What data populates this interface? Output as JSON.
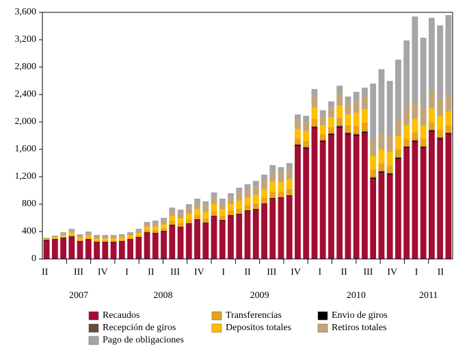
{
  "chart_data": {
    "type": "stacked-bar",
    "categories": [
      null,
      null,
      null,
      null,
      null,
      null,
      null,
      null,
      null,
      null,
      null,
      null,
      null,
      null,
      null,
      null,
      null,
      null,
      null,
      null,
      null,
      null,
      null,
      null,
      null,
      null,
      null,
      null,
      null,
      null,
      null,
      null,
      null,
      null,
      null,
      null,
      null,
      null,
      null,
      null,
      null,
      null,
      null,
      null,
      null,
      null,
      null,
      null,
      null
    ],
    "quarter_labels": [
      "II",
      "III",
      "IV",
      "I",
      "II",
      "III",
      "IV",
      "I",
      "II",
      "III",
      "IV",
      "I",
      "II",
      "III",
      "IV",
      "I",
      "II"
    ],
    "years": [
      "2007",
      "2008",
      "2009",
      "2010",
      "2011"
    ],
    "ylim": [
      0,
      3600
    ],
    "yticks": [
      0,
      400,
      800,
      {
        "value": 1200,
        "label": "1,200"
      },
      {
        "value": 1600,
        "label": "1,600"
      },
      {
        "value": 2000,
        "label": "2,000"
      },
      {
        "value": 2400,
        "label": "2,400"
      },
      {
        "value": 2800,
        "label": "2,800"
      },
      {
        "value": 3200,
        "label": "3,200"
      },
      {
        "value": 3600,
        "label": "3,600"
      }
    ],
    "series": [
      {
        "name": "Recaudos",
        "color": "#a30d33",
        "values": [
          270,
          280,
          300,
          320,
          250,
          280,
          240,
          240,
          240,
          250,
          280,
          310,
          380,
          370,
          400,
          490,
          460,
          510,
          570,
          520,
          620,
          560,
          630,
          650,
          700,
          720,
          800,
          880,
          890,
          920,
          1650,
          1610,
          1910,
          1710,
          1810,
          1920,
          1820,
          1800,
          1840,
          1170,
          1260,
          1230,
          1460,
          1620,
          1710,
          1620,
          1860,
          1750,
          1820
        ]
      },
      {
        "name": "Envio de giros",
        "color": "#000000",
        "values": [
          5,
          5,
          5,
          5,
          5,
          5,
          5,
          5,
          5,
          5,
          5,
          5,
          5,
          5,
          5,
          5,
          5,
          5,
          5,
          5,
          5,
          5,
          5,
          5,
          5,
          5,
          5,
          5,
          5,
          5,
          10,
          10,
          10,
          10,
          10,
          10,
          10,
          10,
          10,
          10,
          10,
          10,
          10,
          10,
          10,
          10,
          10,
          10,
          10
        ]
      },
      {
        "name": "Recepción de giros",
        "color": "#6b4c3b",
        "values": [
          5,
          5,
          5,
          5,
          5,
          5,
          5,
          5,
          5,
          5,
          5,
          5,
          5,
          5,
          5,
          5,
          5,
          5,
          5,
          5,
          5,
          5,
          5,
          5,
          5,
          5,
          5,
          5,
          5,
          5,
          15,
          15,
          15,
          15,
          15,
          15,
          15,
          15,
          15,
          15,
          15,
          15,
          15,
          15,
          15,
          15,
          15,
          15,
          15
        ]
      },
      {
        "name": "Transferencias",
        "color": "#e8a317",
        "values": [
          6,
          10,
          16,
          22,
          20,
          22,
          20,
          20,
          20,
          20,
          20,
          24,
          30,
          36,
          38,
          50,
          50,
          56,
          60,
          62,
          68,
          62,
          64,
          76,
          76,
          82,
          84,
          96,
          88,
          94,
          87,
          91,
          109,
          87,
          93,
          117,
          105,
          123,
          127,
          110,
          110,
          110,
          110,
          110,
          110,
          110,
          110,
          110,
          110
        ]
      },
      {
        "name": "Depositos totales",
        "color": "#ffc000",
        "values": [
          9,
          15,
          24,
          33,
          30,
          33,
          30,
          30,
          30,
          30,
          30,
          36,
          45,
          54,
          57,
          75,
          75,
          84,
          90,
          93,
          102,
          93,
          96,
          114,
          114,
          123,
          126,
          144,
          132,
          141,
          131,
          137,
          164,
          131,
          140,
          176,
          158,
          185,
          191,
          200,
          200,
          200,
          200,
          200,
          200,
          200,
          200,
          200,
          200
        ]
      },
      {
        "name": "Retiros totales",
        "color": "#c4a57a",
        "values": [
          9,
          15,
          24,
          33,
          30,
          33,
          30,
          30,
          30,
          30,
          30,
          36,
          45,
          54,
          57,
          75,
          75,
          84,
          90,
          93,
          102,
          93,
          96,
          114,
          114,
          123,
          126,
          144,
          132,
          141,
          131,
          137,
          164,
          131,
          140,
          176,
          158,
          185,
          191,
          250,
          250,
          250,
          250,
          250,
          250,
          250,
          250,
          250,
          250
        ]
      },
      {
        "name": "Pago de obligaciones",
        "color": "#a6a6a6",
        "values": [
          6,
          10,
          16,
          22,
          20,
          22,
          20,
          20,
          20,
          20,
          20,
          24,
          30,
          36,
          38,
          50,
          50,
          56,
          60,
          62,
          68,
          62,
          64,
          76,
          76,
          82,
          84,
          96,
          88,
          94,
          86,
          90,
          108,
          86,
          92,
          116,
          104,
          122,
          126,
          805,
          925,
          785,
          865,
          985,
          1245,
          1025,
          1075,
          1075,
          1155
        ]
      }
    ]
  }
}
